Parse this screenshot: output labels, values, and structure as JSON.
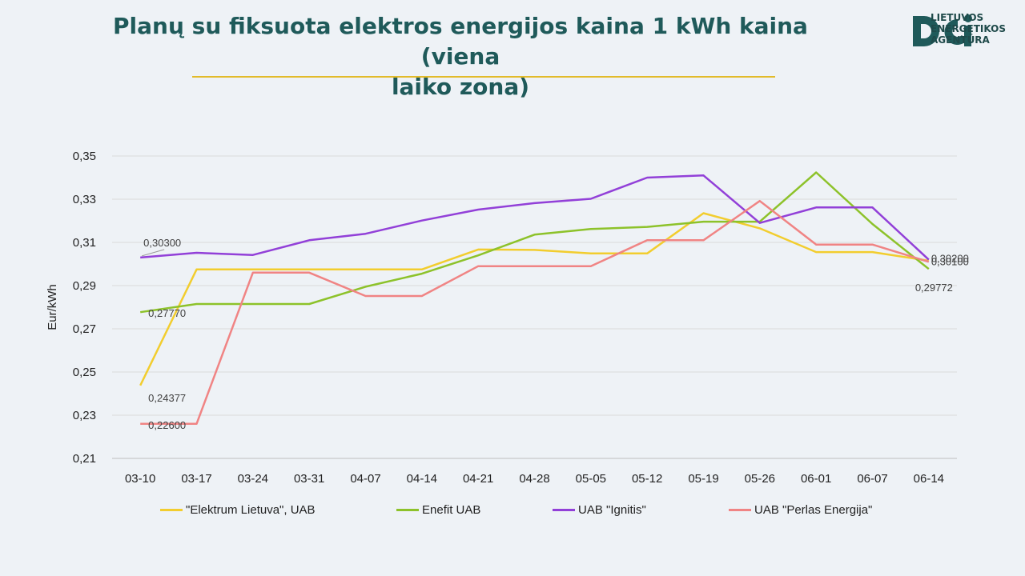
{
  "header": {
    "title_line1": "Planų su fiksuota elektros energijos kaina 1 kWh kaina (viena",
    "title_line2": "laiko zona)",
    "logo_lines": [
      "LIETUVOS",
      "ENERGETIKOS",
      "AGENTŪRA"
    ],
    "accent": "#e2bb2a"
  },
  "chart_data": {
    "type": "line",
    "title": "Planų su fiksuota elektros energijos kaina 1 kWh kaina (viena laiko zona)",
    "xlabel": "",
    "ylabel": "Eur/kWh",
    "ylim": [
      0.21,
      0.35
    ],
    "yticks": [
      "0,21",
      "0,23",
      "0,25",
      "0,27",
      "0,29",
      "0,31",
      "0,33",
      "0,35"
    ],
    "grid": "horizontal",
    "legend_position": "bottom",
    "categories": [
      "03-10",
      "03-17",
      "03-24",
      "03-31",
      "04-07",
      "04-14",
      "04-21",
      "04-28",
      "05-05",
      "05-12",
      "05-19",
      "05-26",
      "06-01",
      "06-07",
      "06-14"
    ],
    "series": [
      {
        "name": "\"Elektrum Lietuva\", UAB",
        "color": "#f2cd2e",
        "values": [
          0.24377,
          0.2975,
          0.2975,
          0.2975,
          0.2975,
          0.2975,
          0.3067,
          0.3065,
          0.3049,
          0.3049,
          0.3235,
          0.3165,
          0.3055,
          0.3055,
          0.3015
        ]
      },
      {
        "name": "Enefit UAB",
        "color": "#8dc22a",
        "values": [
          0.2777,
          0.2815,
          0.2815,
          0.2815,
          0.2895,
          0.2955,
          0.304,
          0.3136,
          0.3162,
          0.3172,
          0.3196,
          0.3196,
          0.3424,
          0.3185,
          0.29772
        ]
      },
      {
        "name": "UAB \"Ignitis\"",
        "color": "#9240d8",
        "values": [
          0.303,
          0.3052,
          0.3042,
          0.311,
          0.314,
          0.3201,
          0.3252,
          0.3282,
          0.3302,
          0.34,
          0.341,
          0.319,
          0.3262,
          0.3262,
          0.302
        ]
      },
      {
        "name": "UAB \"Perlas Energija\"",
        "color": "#f08484",
        "values": [
          0.226,
          0.226,
          0.296,
          0.296,
          0.2852,
          0.2852,
          0.299,
          0.299,
          0.299,
          0.311,
          0.311,
          0.3292,
          0.309,
          0.309,
          0.301
        ]
      }
    ],
    "data_labels": [
      {
        "text": "0,30300",
        "series": 2,
        "index": 0
      },
      {
        "text": "0,27770",
        "series": 1,
        "index": 0
      },
      {
        "text": "0,24377",
        "series": 0,
        "index": 0
      },
      {
        "text": "0,22600",
        "series": 3,
        "index": 0
      },
      {
        "text": "0,30200",
        "series": 2,
        "index": 14
      },
      {
        "text": "0,30100",
        "series": 3,
        "index": 14
      },
      {
        "text": "0,29772",
        "series": 1,
        "index": 14
      }
    ]
  }
}
